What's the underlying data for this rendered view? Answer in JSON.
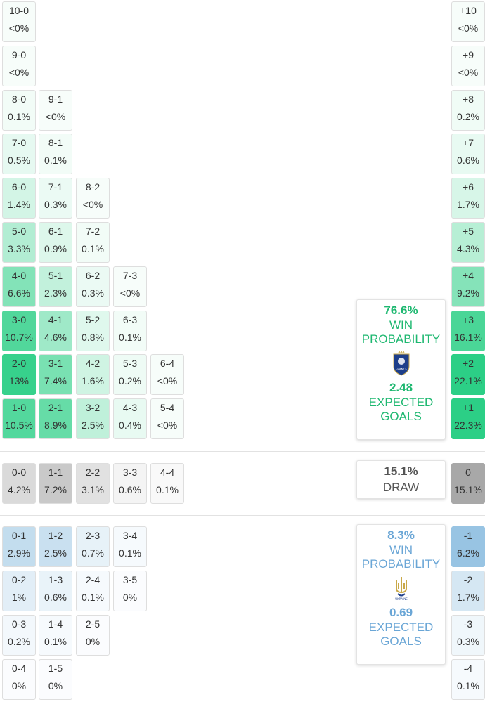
{
  "colors": {
    "home_green": "#2ccf86",
    "draw_grey": "#a8a8a8",
    "away_blue": "#8fbfe0",
    "home_text": "#1fb871",
    "away_text": "#6aa6d6",
    "draw_text": "#555555"
  },
  "home_grid": [
    [
      {
        "score": "10-0",
        "prob": "<0%",
        "p": 0
      }
    ],
    [
      {
        "score": "9-0",
        "prob": "<0%",
        "p": 0
      }
    ],
    [
      {
        "score": "8-0",
        "prob": "0.1%",
        "p": 0.1
      },
      {
        "score": "9-1",
        "prob": "<0%",
        "p": 0
      }
    ],
    [
      {
        "score": "7-0",
        "prob": "0.5%",
        "p": 0.5
      },
      {
        "score": "8-1",
        "prob": "0.1%",
        "p": 0.1
      }
    ],
    [
      {
        "score": "6-0",
        "prob": "1.4%",
        "p": 1.4
      },
      {
        "score": "7-1",
        "prob": "0.3%",
        "p": 0.3
      },
      {
        "score": "8-2",
        "prob": "<0%",
        "p": 0
      }
    ],
    [
      {
        "score": "5-0",
        "prob": "3.3%",
        "p": 3.3
      },
      {
        "score": "6-1",
        "prob": "0.9%",
        "p": 0.9
      },
      {
        "score": "7-2",
        "prob": "0.1%",
        "p": 0.1
      }
    ],
    [
      {
        "score": "4-0",
        "prob": "6.6%",
        "p": 6.6
      },
      {
        "score": "5-1",
        "prob": "2.3%",
        "p": 2.3
      },
      {
        "score": "6-2",
        "prob": "0.3%",
        "p": 0.3
      },
      {
        "score": "7-3",
        "prob": "<0%",
        "p": 0
      }
    ],
    [
      {
        "score": "3-0",
        "prob": "10.7%",
        "p": 10.7
      },
      {
        "score": "4-1",
        "prob": "4.6%",
        "p": 4.6
      },
      {
        "score": "5-2",
        "prob": "0.8%",
        "p": 0.8
      },
      {
        "score": "6-3",
        "prob": "0.1%",
        "p": 0.1
      }
    ],
    [
      {
        "score": "2-0",
        "prob": "13%",
        "p": 13
      },
      {
        "score": "3-1",
        "prob": "7.4%",
        "p": 7.4
      },
      {
        "score": "4-2",
        "prob": "1.6%",
        "p": 1.6
      },
      {
        "score": "5-3",
        "prob": "0.2%",
        "p": 0.2
      },
      {
        "score": "6-4",
        "prob": "<0%",
        "p": 0
      }
    ],
    [
      {
        "score": "1-0",
        "prob": "10.5%",
        "p": 10.5
      },
      {
        "score": "2-1",
        "prob": "8.9%",
        "p": 8.9
      },
      {
        "score": "3-2",
        "prob": "2.5%",
        "p": 2.5
      },
      {
        "score": "4-3",
        "prob": "0.4%",
        "p": 0.4
      },
      {
        "score": "5-4",
        "prob": "<0%",
        "p": 0
      }
    ]
  ],
  "draw_row": [
    {
      "score": "0-0",
      "prob": "4.2%",
      "p": 4.2
    },
    {
      "score": "1-1",
      "prob": "7.2%",
      "p": 7.2
    },
    {
      "score": "2-2",
      "prob": "3.1%",
      "p": 3.1
    },
    {
      "score": "3-3",
      "prob": "0.6%",
      "p": 0.6
    },
    {
      "score": "4-4",
      "prob": "0.1%",
      "p": 0.1
    }
  ],
  "away_grid": [
    [
      {
        "score": "0-1",
        "prob": "2.9%",
        "p": 2.9
      },
      {
        "score": "1-2",
        "prob": "2.5%",
        "p": 2.5
      },
      {
        "score": "2-3",
        "prob": "0.7%",
        "p": 0.7
      },
      {
        "score": "3-4",
        "prob": "0.1%",
        "p": 0.1
      }
    ],
    [
      {
        "score": "0-2",
        "prob": "1%",
        "p": 1
      },
      {
        "score": "1-3",
        "prob": "0.6%",
        "p": 0.6
      },
      {
        "score": "2-4",
        "prob": "0.1%",
        "p": 0.1
      },
      {
        "score": "3-5",
        "prob": "0%",
        "p": 0
      }
    ],
    [
      {
        "score": "0-3",
        "prob": "0.2%",
        "p": 0.2
      },
      {
        "score": "1-4",
        "prob": "0.1%",
        "p": 0.1
      },
      {
        "score": "2-5",
        "prob": "0%",
        "p": 0
      }
    ],
    [
      {
        "score": "0-4",
        "prob": "0%",
        "p": 0
      },
      {
        "score": "1-5",
        "prob": "0%",
        "p": 0
      }
    ]
  ],
  "margins": [
    {
      "label": "+10",
      "prob": "<0%",
      "p": 0,
      "side": "home"
    },
    {
      "label": "+9",
      "prob": "<0%",
      "p": 0,
      "side": "home"
    },
    {
      "label": "+8",
      "prob": "0.2%",
      "p": 0.2,
      "side": "home"
    },
    {
      "label": "+7",
      "prob": "0.6%",
      "p": 0.6,
      "side": "home"
    },
    {
      "label": "+6",
      "prob": "1.7%",
      "p": 1.7,
      "side": "home"
    },
    {
      "label": "+5",
      "prob": "4.3%",
      "p": 4.3,
      "side": "home"
    },
    {
      "label": "+4",
      "prob": "9.2%",
      "p": 9.2,
      "side": "home"
    },
    {
      "label": "+3",
      "prob": "16.1%",
      "p": 16.1,
      "side": "home"
    },
    {
      "label": "+2",
      "prob": "22.1%",
      "p": 22.1,
      "side": "home"
    },
    {
      "label": "+1",
      "prob": "22.3%",
      "p": 22.3,
      "side": "home"
    },
    {
      "label": "0",
      "prob": "15.1%",
      "p": 15.1,
      "side": "draw"
    },
    {
      "label": "-1",
      "prob": "6.2%",
      "p": 6.2,
      "side": "away"
    },
    {
      "label": "-2",
      "prob": "1.7%",
      "p": 1.7,
      "side": "away"
    },
    {
      "label": "-3",
      "prob": "0.3%",
      "p": 0.3,
      "side": "away"
    },
    {
      "label": "-4",
      "prob": "0.1%",
      "p": 0.1,
      "side": "away"
    }
  ],
  "home_summary": {
    "win_pct": "76.6%",
    "win_label_1": "WIN",
    "win_label_2": "PROBABILITY",
    "crest": "france-crest-icon",
    "crest_text": "FRANCE",
    "xg": "2.48",
    "xg_label_1": "EXPECTED",
    "xg_label_2": "GOALS"
  },
  "draw_summary": {
    "pct": "15.1%",
    "label": "DRAW"
  },
  "away_summary": {
    "win_pct": "8.3%",
    "win_label_1": "WIN",
    "win_label_2": "PROBABILITY",
    "crest": "ukraine-trident-icon",
    "crest_text": "UKRAINE",
    "xg": "0.69",
    "xg_label_1": "EXPECTED",
    "xg_label_2": "GOALS"
  }
}
